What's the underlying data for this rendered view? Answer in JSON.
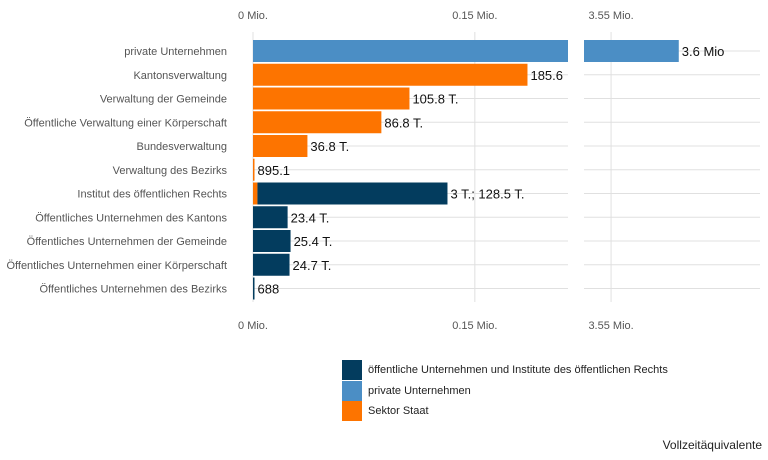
{
  "chart_data": {
    "type": "bar",
    "orientation": "horizontal",
    "categories": [
      "private Unternehmen",
      "Kantonsverwaltung",
      "Verwaltung der Gemeinde",
      "Öffentliche Verwaltung einer Körperschaft",
      "Bundesverwaltung",
      "Verwaltung des Bezirks",
      "Institut des öffentlichen Rechts",
      "Öffentliches Unternehmen des Kantons",
      "Öffentliches Unternehmen der Gemeinde",
      "Öffentliches Unternehmen einer Körperschaft",
      "Öffentliches Unternehmen des Bezirks"
    ],
    "bars": [
      {
        "category": "private Unternehmen",
        "group": "private Unternehmen",
        "value": 3600000,
        "label": "3.6 Mio"
      },
      {
        "category": "Kantonsverwaltung",
        "group": "Sektor Staat",
        "value": 185600,
        "label": "185.6"
      },
      {
        "category": "Verwaltung der Gemeinde",
        "group": "Sektor Staat",
        "value": 105800,
        "label": "105.8 T."
      },
      {
        "category": "Öffentliche Verwaltung einer Körperschaft",
        "group": "Sektor Staat",
        "value": 86800,
        "label": "86.8 T."
      },
      {
        "category": "Bundesverwaltung",
        "group": "Sektor Staat",
        "value": 36800,
        "label": "36.8 T."
      },
      {
        "category": "Verwaltung des Bezirks",
        "group": "Sektor Staat",
        "value": 895.1,
        "label": "895.1"
      },
      {
        "category": "Institut des öffentlichen Rechts",
        "group": "Sektor Staat",
        "value": 3000,
        "label": ""
      },
      {
        "category": "Institut des öffentlichen Rechts",
        "group": "öffentliche Unternehmen und Institute des öffentlichen Rechts",
        "value": 128500,
        "label": "3 T.; 128.5 T."
      },
      {
        "category": "Öffentliches Unternehmen des Kantons",
        "group": "öffentliche Unternehmen und Institute des öffentlichen Rechts",
        "value": 23400,
        "label": "23.4 T."
      },
      {
        "category": "Öffentliches Unternehmen der Gemeinde",
        "group": "öffentliche Unternehmen und Institute des öffentlichen Rechts",
        "value": 25400,
        "label": "25.4 T."
      },
      {
        "category": "Öffentliches Unternehmen einer Körperschaft",
        "group": "öffentliche Unternehmen und Institute des öffentlichen Rechts",
        "value": 24700,
        "label": "24.7 T."
      },
      {
        "category": "Öffentliches Unternehmen des Bezirks",
        "group": "öffentliche Unternehmen und Institute des öffentlichen Rechts",
        "value": 688,
        "label": "688"
      }
    ],
    "axis": {
      "segments": [
        {
          "range": [
            0,
            213000
          ],
          "ticks": [
            {
              "value": 0,
              "label": "0 Mio."
            },
            {
              "value": 150000,
              "label": "0.15 Mio."
            }
          ]
        },
        {
          "range": [
            3530000,
            3660000
          ],
          "ticks": [
            {
              "value": 3550000,
              "label": "3.55 Mio."
            }
          ]
        }
      ],
      "xlabel": "Vollzeitäquivalente",
      "grid": true
    },
    "legend": {
      "placement": "bottom",
      "entries": [
        {
          "name": "öffentliche Unternehmen und Institute des öffentlichen Rechts",
          "color": "#033c5e"
        },
        {
          "name": "private Unternehmen",
          "color": "#4b8ec5"
        },
        {
          "name": "Sektor Staat",
          "color": "#fd7400"
        }
      ]
    }
  }
}
